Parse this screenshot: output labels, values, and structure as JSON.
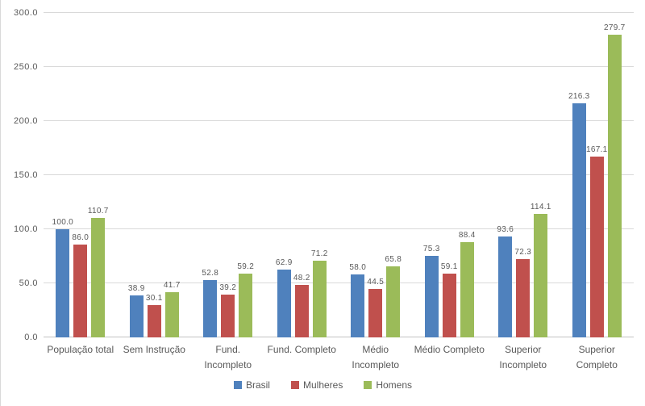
{
  "chart_data": {
    "type": "bar",
    "title": "",
    "xlabel": "",
    "ylabel": "",
    "ylim": [
      0,
      300
    ],
    "ytick_labels": [
      "0.0",
      "50.0",
      "100.0",
      "150.0",
      "200.0",
      "250.0",
      "300.0"
    ],
    "grid": true,
    "legend_position": "bottom",
    "value_label_decimals": 1,
    "categories": [
      "População total",
      "Sem Instrução",
      "Fund. Incompleto",
      "Fund. Completo",
      "Médio Incompleto",
      "Médio Completo",
      "Superior Incompleto",
      "Superior Completo"
    ],
    "category_lines": [
      [
        "População total"
      ],
      [
        "Sem Instrução"
      ],
      [
        "Fund.",
        "Incompleto"
      ],
      [
        "Fund. Completo"
      ],
      [
        "Médio",
        "Incompleto"
      ],
      [
        "Médio Completo"
      ],
      [
        "Superior",
        "Incompleto"
      ],
      [
        "Superior",
        "Completo"
      ]
    ],
    "series": [
      {
        "name": "Brasil",
        "color": "#4F81BD",
        "values": [
          100.0,
          38.9,
          52.8,
          62.9,
          58.0,
          75.3,
          93.6,
          216.3
        ]
      },
      {
        "name": "Mulheres",
        "color": "#C0504D",
        "values": [
          86.0,
          30.1,
          39.2,
          48.2,
          44.5,
          59.1,
          72.3,
          167.1
        ]
      },
      {
        "name": "Homens",
        "color": "#9BBB59",
        "values": [
          110.7,
          41.7,
          59.2,
          71.2,
          65.8,
          88.4,
          114.1,
          279.7
        ]
      }
    ]
  },
  "colors": {
    "gridline": "#d9d9d9",
    "axis_line": "#c3c3c3",
    "text": "#595959",
    "background": "#ffffff"
  }
}
